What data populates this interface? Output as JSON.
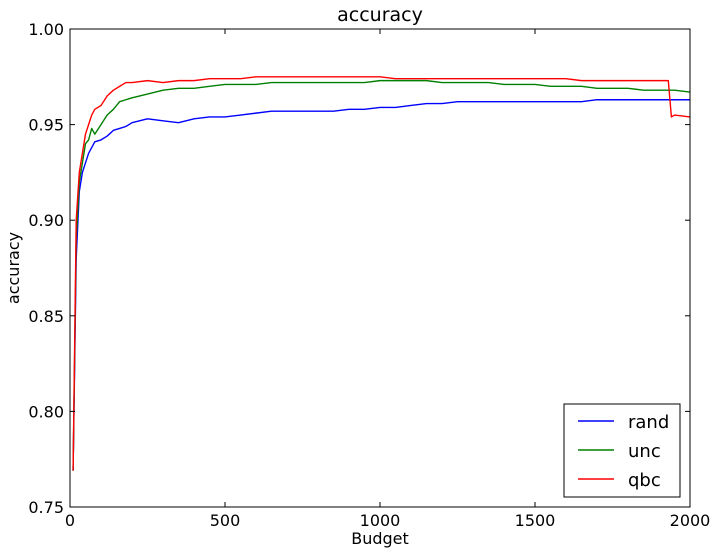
{
  "chart_data": {
    "type": "line",
    "title": "accuracy",
    "xlabel": "Budget",
    "ylabel": "accuracy",
    "xlim": [
      0,
      2000
    ],
    "ylim": [
      0.75,
      1.0
    ],
    "xticks": [
      0,
      500,
      1000,
      1500,
      2000
    ],
    "yticks": [
      0.75,
      0.8,
      0.85,
      0.9,
      0.95,
      1.0
    ],
    "xtick_labels": [
      "0",
      "500",
      "1000",
      "1500",
      "2000"
    ],
    "ytick_labels": [
      "0.75",
      "0.80",
      "0.85",
      "0.90",
      "0.95",
      "1.00"
    ],
    "grid": false,
    "legend_position": "lower-right",
    "series": [
      {
        "name": "rand",
        "color": "#0000ff",
        "x": [
          10,
          20,
          30,
          40,
          50,
          60,
          70,
          80,
          100,
          120,
          140,
          160,
          180,
          200,
          250,
          300,
          350,
          400,
          450,
          500,
          550,
          600,
          650,
          700,
          750,
          800,
          850,
          900,
          950,
          1000,
          1050,
          1100,
          1150,
          1200,
          1250,
          1300,
          1350,
          1400,
          1450,
          1500,
          1550,
          1600,
          1650,
          1700,
          1750,
          1800,
          1850,
          1900,
          1950,
          2000
        ],
        "values": [
          0.769,
          0.88,
          0.915,
          0.925,
          0.93,
          0.935,
          0.938,
          0.941,
          0.942,
          0.944,
          0.947,
          0.948,
          0.949,
          0.951,
          0.953,
          0.952,
          0.951,
          0.953,
          0.954,
          0.954,
          0.955,
          0.956,
          0.957,
          0.957,
          0.957,
          0.957,
          0.957,
          0.958,
          0.958,
          0.959,
          0.959,
          0.96,
          0.961,
          0.961,
          0.962,
          0.962,
          0.962,
          0.962,
          0.962,
          0.962,
          0.962,
          0.962,
          0.962,
          0.963,
          0.963,
          0.963,
          0.963,
          0.963,
          0.963,
          0.963
        ]
      },
      {
        "name": "unc",
        "color": "#008000",
        "x": [
          10,
          20,
          30,
          40,
          50,
          60,
          70,
          80,
          100,
          120,
          140,
          160,
          180,
          200,
          250,
          300,
          350,
          400,
          450,
          500,
          550,
          600,
          650,
          700,
          750,
          800,
          850,
          900,
          950,
          1000,
          1050,
          1100,
          1150,
          1200,
          1250,
          1300,
          1350,
          1400,
          1450,
          1500,
          1550,
          1600,
          1650,
          1700,
          1750,
          1800,
          1850,
          1900,
          1950,
          2000
        ],
        "values": [
          0.769,
          0.89,
          0.92,
          0.93,
          0.94,
          0.942,
          0.948,
          0.945,
          0.95,
          0.955,
          0.958,
          0.962,
          0.963,
          0.964,
          0.966,
          0.968,
          0.969,
          0.969,
          0.97,
          0.971,
          0.971,
          0.971,
          0.972,
          0.972,
          0.972,
          0.972,
          0.972,
          0.972,
          0.972,
          0.973,
          0.973,
          0.973,
          0.973,
          0.972,
          0.972,
          0.972,
          0.972,
          0.971,
          0.971,
          0.971,
          0.97,
          0.97,
          0.97,
          0.969,
          0.969,
          0.969,
          0.968,
          0.968,
          0.968,
          0.967
        ]
      },
      {
        "name": "qbc",
        "color": "#ff0000",
        "x": [
          10,
          20,
          30,
          40,
          50,
          60,
          70,
          80,
          100,
          120,
          140,
          160,
          180,
          200,
          250,
          300,
          350,
          400,
          450,
          500,
          550,
          600,
          650,
          700,
          750,
          800,
          850,
          900,
          950,
          1000,
          1050,
          1100,
          1150,
          1200,
          1250,
          1300,
          1350,
          1400,
          1450,
          1500,
          1550,
          1600,
          1650,
          1700,
          1750,
          1800,
          1850,
          1900,
          1930,
          1940,
          1950,
          2000
        ],
        "values": [
          0.769,
          0.9,
          0.925,
          0.935,
          0.945,
          0.95,
          0.955,
          0.958,
          0.96,
          0.965,
          0.968,
          0.97,
          0.972,
          0.972,
          0.973,
          0.972,
          0.973,
          0.973,
          0.974,
          0.974,
          0.974,
          0.975,
          0.975,
          0.975,
          0.975,
          0.975,
          0.975,
          0.975,
          0.975,
          0.975,
          0.974,
          0.974,
          0.974,
          0.974,
          0.974,
          0.974,
          0.974,
          0.974,
          0.974,
          0.974,
          0.974,
          0.974,
          0.973,
          0.973,
          0.973,
          0.973,
          0.973,
          0.973,
          0.973,
          0.954,
          0.955,
          0.954
        ]
      }
    ]
  }
}
